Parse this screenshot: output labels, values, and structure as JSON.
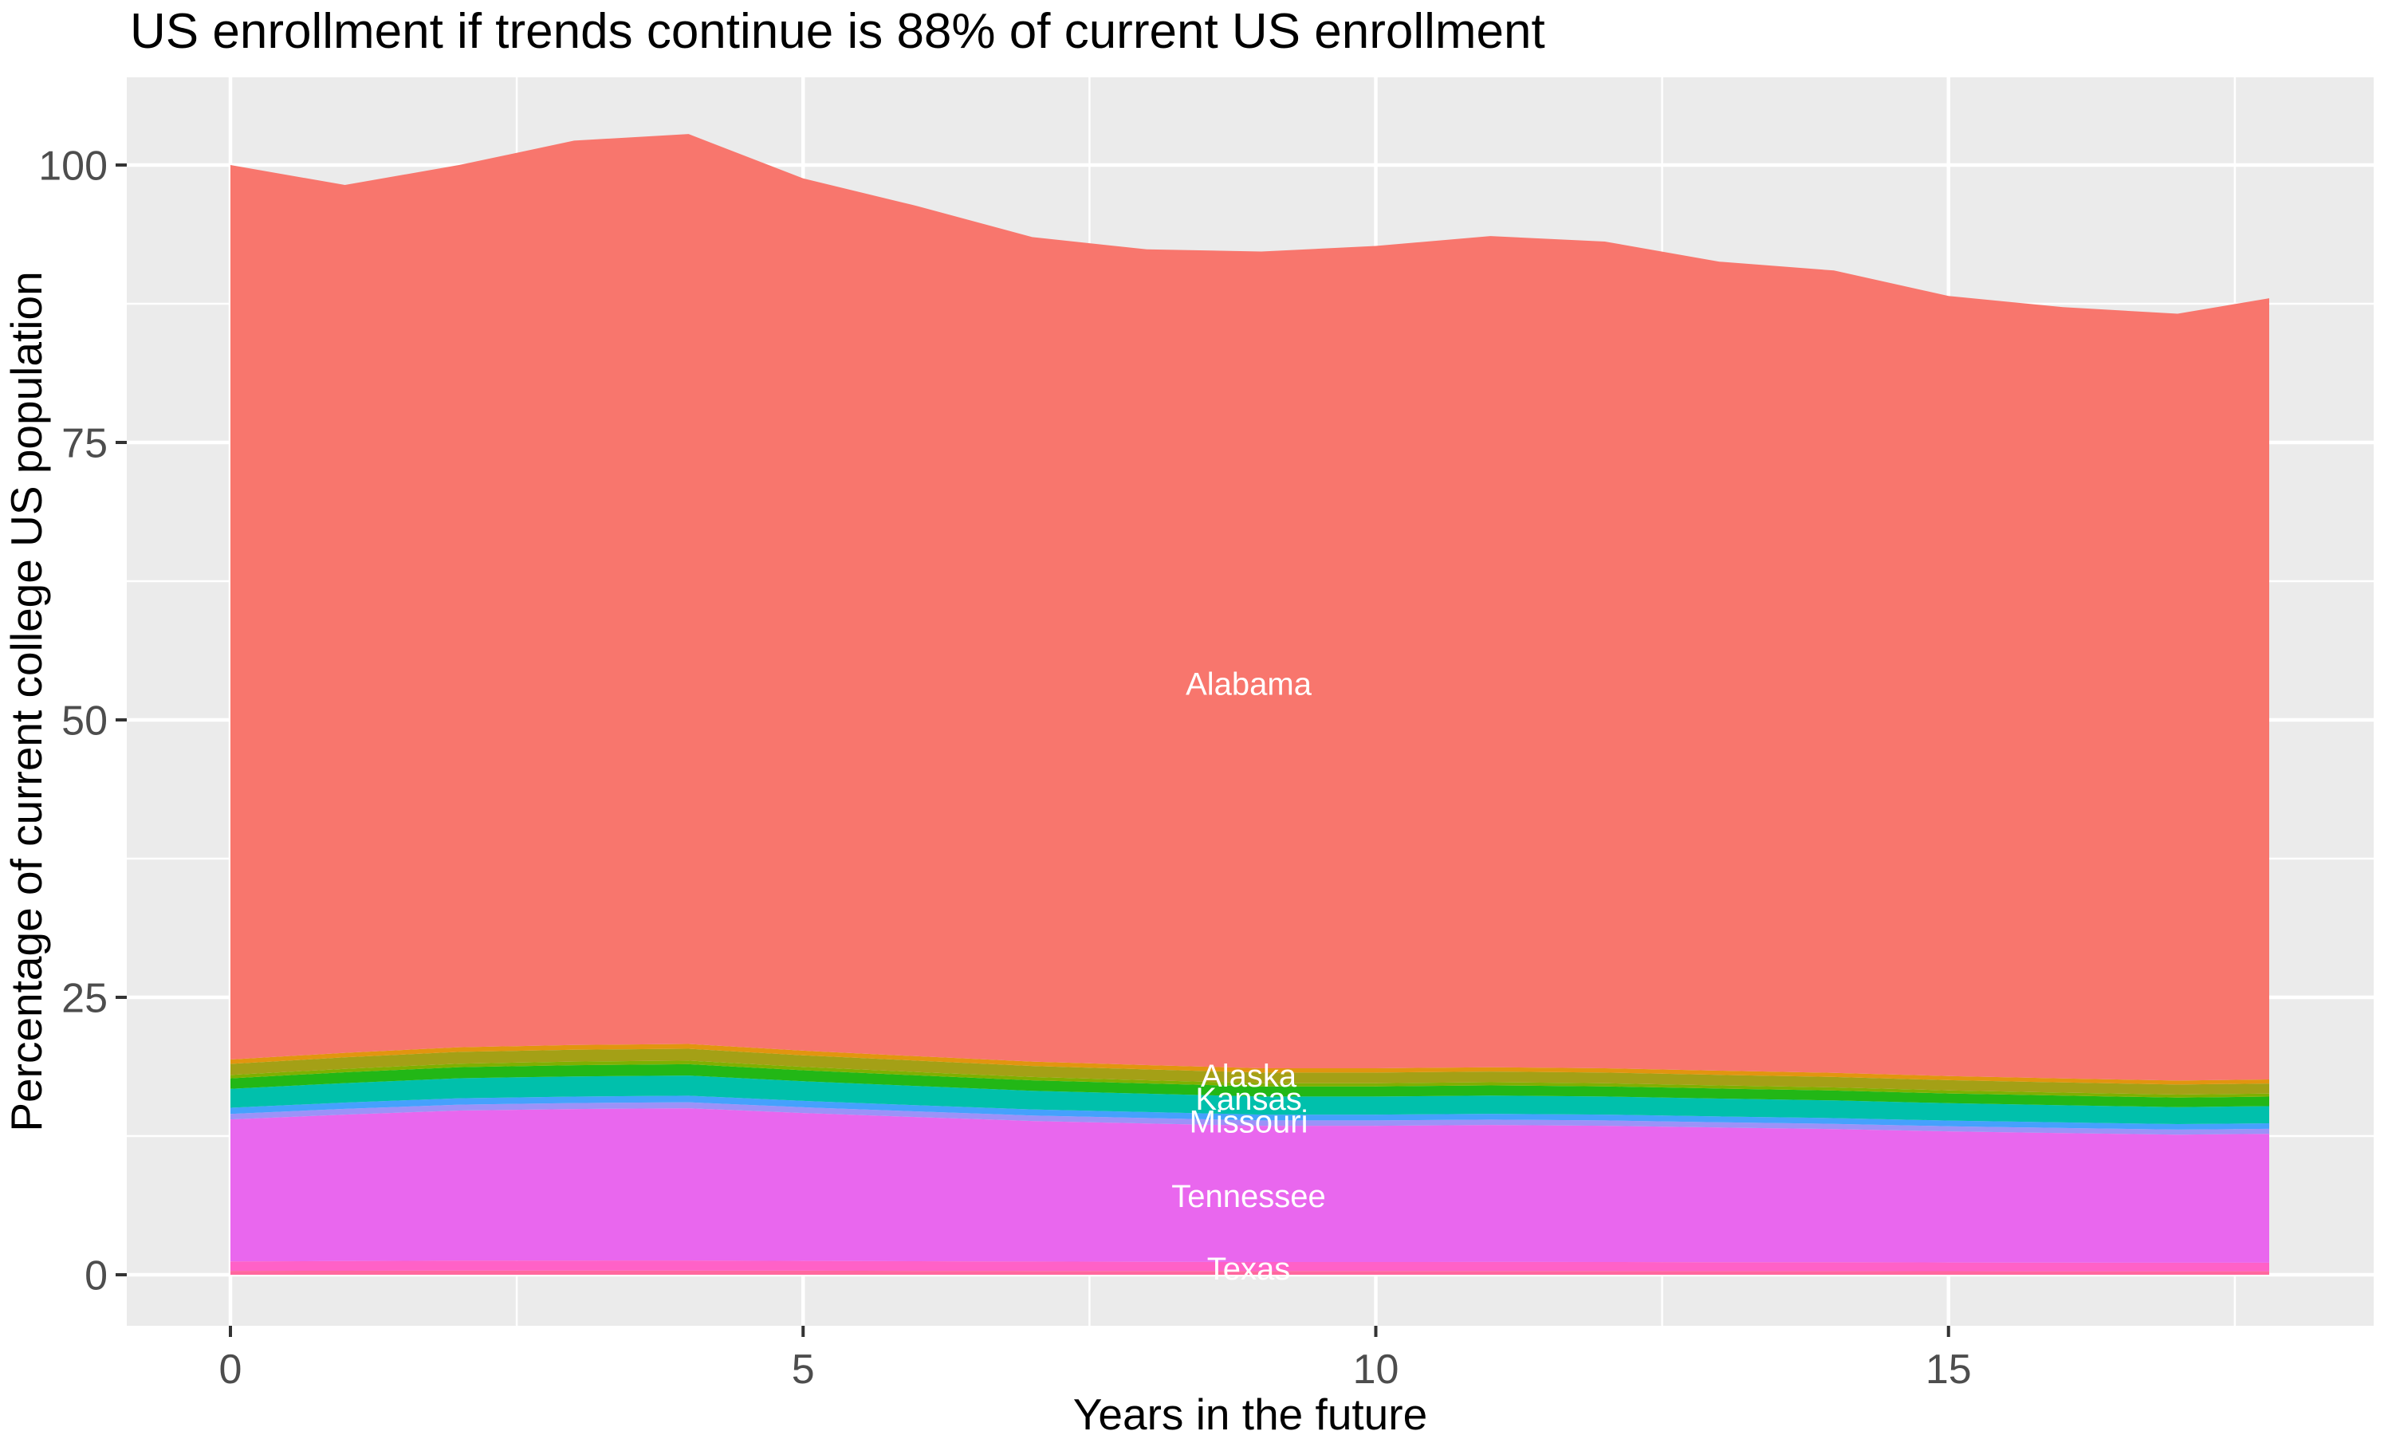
{
  "title": "US enrollment if trends continue is 88% of current US enrollment",
  "x_axis": {
    "title": "Years in the future",
    "ticks": [
      0,
      5,
      10,
      15
    ],
    "minor_ticks": [
      2.5,
      7.5,
      12.5,
      17.5
    ],
    "range": [
      -0.9,
      18.7
    ]
  },
  "y_axis": {
    "title": "Percentage of current college US population",
    "ticks": [
      0,
      25,
      50,
      75,
      100
    ],
    "minor_ticks": [
      12.5,
      37.5,
      62.5,
      87.5
    ],
    "range": [
      -4.6,
      107.9
    ]
  },
  "colors": {
    "figure_background": "#FFFFFF",
    "panel_background": "#EBEBEB",
    "gridline_major": "#FFFFFF",
    "gridline_minor": "#FFFFFF",
    "tick_mark": "#333333",
    "tick_text": "#4D4D4D",
    "axis_title_text": "#000000",
    "title_text": "#000000",
    "area_label_text": "#FFFFFF"
  },
  "chart_data": {
    "type": "area",
    "stacked": true,
    "grid": true,
    "legend": "none",
    "final_total_pct": 88,
    "x": [
      0,
      1,
      2,
      3,
      4,
      5,
      6,
      7,
      8,
      9,
      10,
      11,
      12,
      13,
      14,
      15,
      16,
      17,
      17.8
    ],
    "totals": [
      100.0,
      98.2,
      100.0,
      102.2,
      102.8,
      98.8,
      96.3,
      93.5,
      92.4,
      92.2,
      92.7,
      93.6,
      93.1,
      91.3,
      90.5,
      88.2,
      87.2,
      86.6,
      88.0
    ],
    "series": [
      {
        "name": "unlabeled-bottom-states",
        "color": "#FF689E",
        "values": [
          0.35,
          0.361,
          0.37,
          0.373,
          0.375,
          0.364,
          0.355,
          0.347,
          0.341,
          0.336,
          0.336,
          0.337,
          0.336,
          0.332,
          0.328,
          0.323,
          0.319,
          0.316,
          0.317
        ]
      },
      {
        "name": "Texas",
        "color": "#FF61C7",
        "values": [
          0.85,
          0.876,
          0.898,
          0.907,
          0.911,
          0.885,
          0.863,
          0.842,
          0.828,
          0.815,
          0.815,
          0.819,
          0.815,
          0.806,
          0.797,
          0.785,
          0.775,
          0.767,
          0.771
        ]
      },
      {
        "name": "Tennessee",
        "color": "#E967EE",
        "values": [
          12.8,
          13.197,
          13.53,
          13.658,
          13.722,
          13.325,
          12.992,
          12.672,
          12.467,
          12.275,
          12.275,
          12.339,
          12.275,
          12.134,
          12.006,
          11.814,
          11.674,
          11.546,
          11.61
        ]
      },
      {
        "name": "unlabeled-violet-states",
        "color": "#9C92F8",
        "values": [
          0.5,
          0.516,
          0.529,
          0.534,
          0.536,
          0.521,
          0.508,
          0.495,
          0.487,
          0.48,
          0.48,
          0.482,
          0.48,
          0.474,
          0.469,
          0.462,
          0.456,
          0.451,
          0.454
        ]
      },
      {
        "name": "unlabeled-blue-states",
        "color": "#45A1FD",
        "values": [
          0.55,
          0.567,
          0.581,
          0.587,
          0.59,
          0.573,
          0.558,
          0.545,
          0.536,
          0.527,
          0.527,
          0.53,
          0.527,
          0.521,
          0.516,
          0.508,
          0.502,
          0.496,
          0.499
        ]
      },
      {
        "name": "Missouri",
        "color": "#00C0AC",
        "values": [
          1.7,
          1.753,
          1.797,
          1.814,
          1.822,
          1.77,
          1.726,
          1.683,
          1.656,
          1.63,
          1.63,
          1.639,
          1.63,
          1.612,
          1.595,
          1.569,
          1.55,
          1.533,
          1.542
        ]
      },
      {
        "name": "Kansas",
        "color": "#22B716",
        "values": [
          0.95,
          0.979,
          1.004,
          1.014,
          1.018,
          0.989,
          0.964,
          0.941,
          0.925,
          0.911,
          0.911,
          0.916,
          0.911,
          0.901,
          0.891,
          0.877,
          0.866,
          0.857,
          0.862
        ]
      },
      {
        "name": "unlabeled-yellowgreen-states",
        "color": "#7FB000",
        "values": [
          0.3,
          0.309,
          0.317,
          0.32,
          0.322,
          0.312,
          0.305,
          0.297,
          0.292,
          0.288,
          0.288,
          0.289,
          0.288,
          0.284,
          0.281,
          0.277,
          0.274,
          0.271,
          0.272
        ]
      },
      {
        "name": "Alaska",
        "color": "#A4A016",
        "values": [
          1.0,
          1.031,
          1.057,
          1.067,
          1.072,
          1.041,
          1.015,
          0.99,
          0.974,
          0.959,
          0.959,
          0.964,
          0.959,
          0.948,
          0.938,
          0.923,
          0.912,
          0.902,
          0.907
        ]
      },
      {
        "name": "unlabeled-orange-states",
        "color": "#E2950F",
        "values": [
          0.4,
          0.412,
          0.423,
          0.427,
          0.429,
          0.416,
          0.406,
          0.396,
          0.39,
          0.384,
          0.384,
          0.386,
          0.384,
          0.379,
          0.375,
          0.369,
          0.365,
          0.361,
          0.363
        ]
      },
      {
        "name": "Alabama",
        "color": "#F8766D",
        "values": [
          80.6,
          78.2,
          79.5,
          81.5,
          82.0,
          78.6,
          76.6,
          74.3,
          73.5,
          73.6,
          74.1,
          74.9,
          74.5,
          72.9,
          72.3,
          70.3,
          69.5,
          69.1,
          70.4
        ]
      }
    ],
    "area_labels": [
      {
        "text": "Alabama",
        "x": 8.89,
        "y": 53.3
      },
      {
        "text": "Alaska",
        "x": 8.89,
        "y": 18.0
      },
      {
        "text": "Kansas",
        "x": 8.89,
        "y": 15.9
      },
      {
        "text": "Missouri",
        "x": 8.89,
        "y": 13.85
      },
      {
        "text": "Tennessee",
        "x": 8.89,
        "y": 7.15
      },
      {
        "text": "Texas",
        "x": 8.89,
        "y": 0.6
      }
    ]
  }
}
